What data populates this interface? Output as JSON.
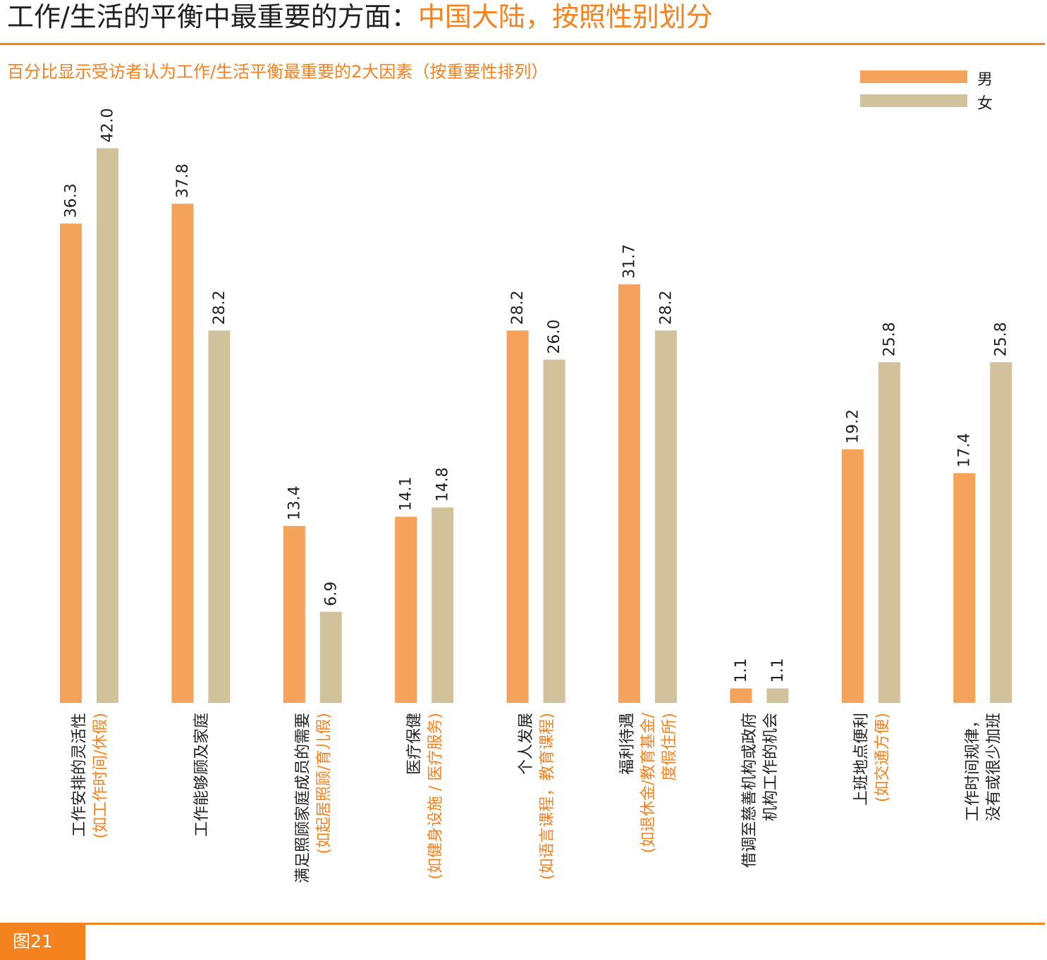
{
  "header": {
    "title_main": "工作/生活的平衡中最重要的方面：",
    "title_accent": "中国大陆，按照性别划分",
    "subtitle": "百分比显示受访者认为工作/生活平衡最重要的2大因素（按重要性排列）"
  },
  "legend": {
    "male": "男",
    "female": "女"
  },
  "figure_label": "图21",
  "colors": {
    "accent": "#f4821f",
    "male": "#f5a35a",
    "female": "#d2c29b",
    "text": "#231f20"
  },
  "chart_data": {
    "type": "bar",
    "orientation": "vertical",
    "title": "工作/生活的平衡中最重要的方面：中国大陆，按照性别划分",
    "subtitle": "百分比显示受访者认为工作/生活平衡最重要的2大因素（按重要性排列）",
    "xlabel": "",
    "ylabel": "",
    "ylim": [
      0,
      45
    ],
    "grid": false,
    "legend_position": "top-right",
    "categories": [
      "工作安排的灵活性 (如工作时间/休假)",
      "工作能够顾及家庭",
      "满足照顾家庭成员的需要 (如起居照顾/育儿假)",
      "医疗保健 (如健身设施 / 医疗服务)",
      "个人发展 (如语言课程，教育课程)",
      "福利待遇 (如退休金/教育基金/度假住所)",
      "借调至慈善机构或政府机构工作的机会",
      "上班地点便利 (如交通方便)",
      "工作时间规律，没有或很少加班"
    ],
    "category_labels": [
      {
        "lines": [
          "工作安排的灵活性"
        ],
        "note": "(如工作时间/休假)"
      },
      {
        "lines": [
          "工作能够顾及家庭"
        ],
        "note": ""
      },
      {
        "lines": [
          "满足照顾家庭成员的需要"
        ],
        "note": "(如起居照顾/育儿假)"
      },
      {
        "lines": [
          "医疗保健"
        ],
        "note": "(如健身设施 / 医疗服务)"
      },
      {
        "lines": [
          "个人发展"
        ],
        "note": "(如语言课程，教育课程)"
      },
      {
        "lines": [
          "福利待遇"
        ],
        "note": "(如退休金/教育基金/",
        "note2": "度假住所)"
      },
      {
        "lines": [
          "借调至慈善机构或政府",
          "机构工作的机会"
        ],
        "note": ""
      },
      {
        "lines": [
          "上班地点便利"
        ],
        "note": "(如交通方便)"
      },
      {
        "lines": [
          "工作时间规律，",
          "没有或很少加班"
        ],
        "note": ""
      }
    ],
    "series": [
      {
        "name": "男",
        "values": [
          36.3,
          37.8,
          13.4,
          14.1,
          28.2,
          31.7,
          1.1,
          19.2,
          17.4
        ]
      },
      {
        "name": "女",
        "values": [
          42.0,
          28.2,
          6.9,
          14.8,
          26.0,
          28.2,
          1.1,
          25.8,
          25.8
        ]
      }
    ]
  }
}
